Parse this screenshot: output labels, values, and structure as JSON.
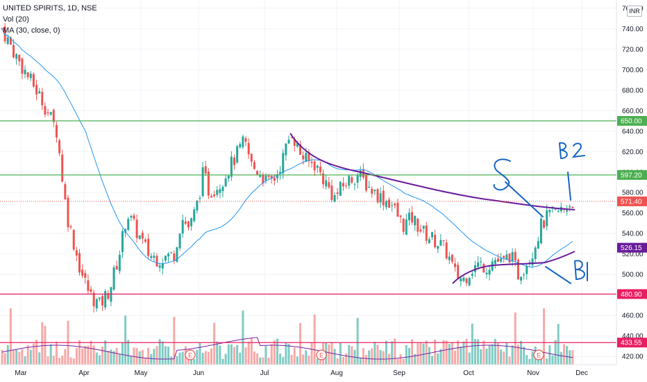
{
  "legend": {
    "title": "UNITED SPIRITS, 1D, NSE",
    "volume": "Vol (20)",
    "ma": "MA (30, close, 0)"
  },
  "currency_label": "INR",
  "colors": {
    "up": "#26a69a",
    "down": "#ef5350",
    "up_volume": "#80cbc4",
    "down_volume": "#f7a9a7",
    "ma_line": "#2196f3",
    "annotation_line": "#6a1b9a",
    "handwriting": "#1565c0",
    "resistance": "#4caf50",
    "support": "#e91e63"
  },
  "chart_data": {
    "type": "candlestick",
    "title": "UNITED SPIRITS, 1D, NSE",
    "y_axis_ticks": [
      "760.00",
      "740.00",
      "720.00",
      "700.00",
      "680.00",
      "660.00",
      "640.00",
      "620.00",
      "600.00",
      "580.00",
      "560.00",
      "540.00",
      "520.00",
      "500.00",
      "480.00",
      "460.00",
      "440.00",
      "420.00"
    ],
    "ylim": [
      412,
      768
    ],
    "x_axis_ticks": [
      "Mar",
      "Apr",
      "May",
      "Jun",
      "Jul",
      "Aug",
      "Sep",
      "Oct",
      "Nov",
      "Dec"
    ],
    "horizontal_levels": [
      {
        "value": 650.0,
        "label": "650.00",
        "color": "#4caf50"
      },
      {
        "value": 597.2,
        "label": "597.20",
        "color": "#4caf50"
      },
      {
        "value": 480.9,
        "label": "480.90",
        "color": "#e91e63"
      },
      {
        "value": 433.55,
        "label": "433.55",
        "color": "#e91e63"
      }
    ],
    "current_price": {
      "value": 571.4,
      "label": "571.40"
    },
    "ma_value": {
      "value": 526.15,
      "label": "526.15"
    },
    "earnings_markers": [
      "E",
      "E",
      "E"
    ],
    "handwritten_annotations": [
      "S",
      "B2",
      "B1"
    ],
    "grid": true,
    "legend_position": "top-left"
  }
}
